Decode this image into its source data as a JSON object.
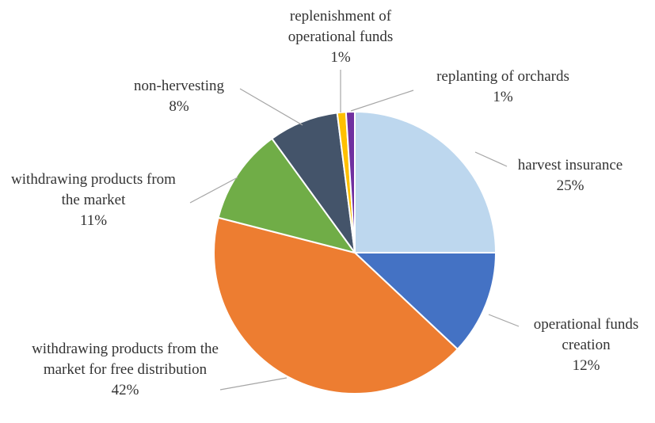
{
  "chart_data": {
    "type": "pie",
    "categories": [
      "harvest insurance",
      "operational funds creation",
      "withdrawing products from the market for free distribution",
      "withdrawing products from the market",
      "non-hervesting",
      "replenishment of operational funds",
      "replanting of orchards"
    ],
    "values": [
      25,
      12,
      42,
      11,
      8,
      1,
      1
    ],
    "value_labels": [
      "25%",
      "12%",
      "42%",
      "11%",
      "8%",
      "1%",
      "1%"
    ],
    "colors": [
      "#bdd7ee",
      "#4472c4",
      "#ed7d31",
      "#70ad47",
      "#44546a",
      "#ffc000",
      "#7030a0"
    ]
  }
}
